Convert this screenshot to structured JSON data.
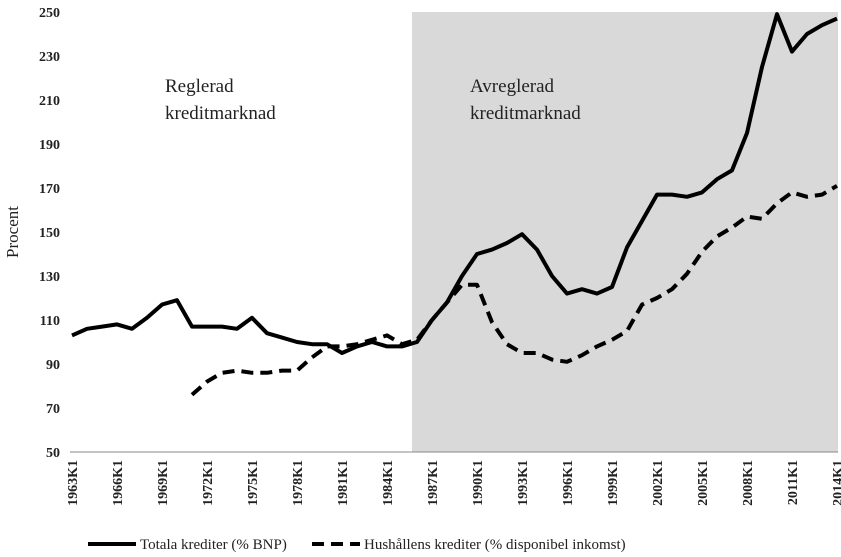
{
  "chart_data": {
    "type": "line",
    "y_label": "Procent",
    "annotations": [
      [
        "Reglerad",
        "kreditmarknad"
      ],
      [
        "Avreglerad",
        "kreditmarknad"
      ]
    ],
    "categories": [
      "1963K1",
      null,
      null,
      "1966K1",
      null,
      null,
      "1969K1",
      null,
      null,
      "1972K1",
      null,
      null,
      "1975K1",
      null,
      null,
      "1978K1",
      null,
      null,
      "1981K1",
      null,
      null,
      "1984K1",
      null,
      null,
      "1987K1",
      null,
      null,
      "1990K1",
      null,
      null,
      "1993K1",
      null,
      null,
      "1996K1",
      null,
      null,
      "1999K1",
      null,
      null,
      "2002K1",
      null,
      null,
      "2005K1",
      null,
      null,
      "2008K1",
      null,
      null,
      "2011K1",
      null,
      null,
      "2014K1"
    ],
    "series": [
      {
        "name": "Totala krediter (% BNP)",
        "color": "#000000",
        "linestyle": "solid",
        "values": [
          103,
          106,
          107,
          108,
          106,
          111,
          117,
          119,
          107,
          107,
          107,
          106,
          111,
          104,
          102,
          100,
          99,
          99,
          95,
          98,
          100,
          98,
          98,
          100,
          110,
          118,
          130,
          140,
          142,
          145,
          149,
          142,
          130,
          122,
          124,
          122,
          125,
          143,
          155,
          167,
          167,
          166,
          168,
          174,
          178,
          195,
          225,
          249,
          232,
          240,
          244,
          247
        ]
      },
      {
        "name": "Hushållens krediter (% disponibel inkomst)",
        "color": "#000000",
        "linestyle": "dashed",
        "values": [
          null,
          null,
          null,
          null,
          null,
          null,
          null,
          null,
          76,
          82,
          86,
          87,
          86,
          86,
          87,
          87,
          93,
          98,
          98,
          99,
          101,
          103,
          99,
          101,
          110,
          118,
          126,
          126,
          109,
          99,
          95,
          95,
          92,
          91,
          94,
          98,
          101,
          105,
          117,
          120,
          124,
          131,
          141,
          148,
          152,
          157,
          156,
          163,
          168,
          166,
          167,
          171
        ]
      }
    ],
    "ylim": [
      50,
      250
    ],
    "yticks": [
      50,
      70,
      90,
      110,
      130,
      150,
      170,
      190,
      210,
      230,
      250
    ],
    "grid": false
  }
}
